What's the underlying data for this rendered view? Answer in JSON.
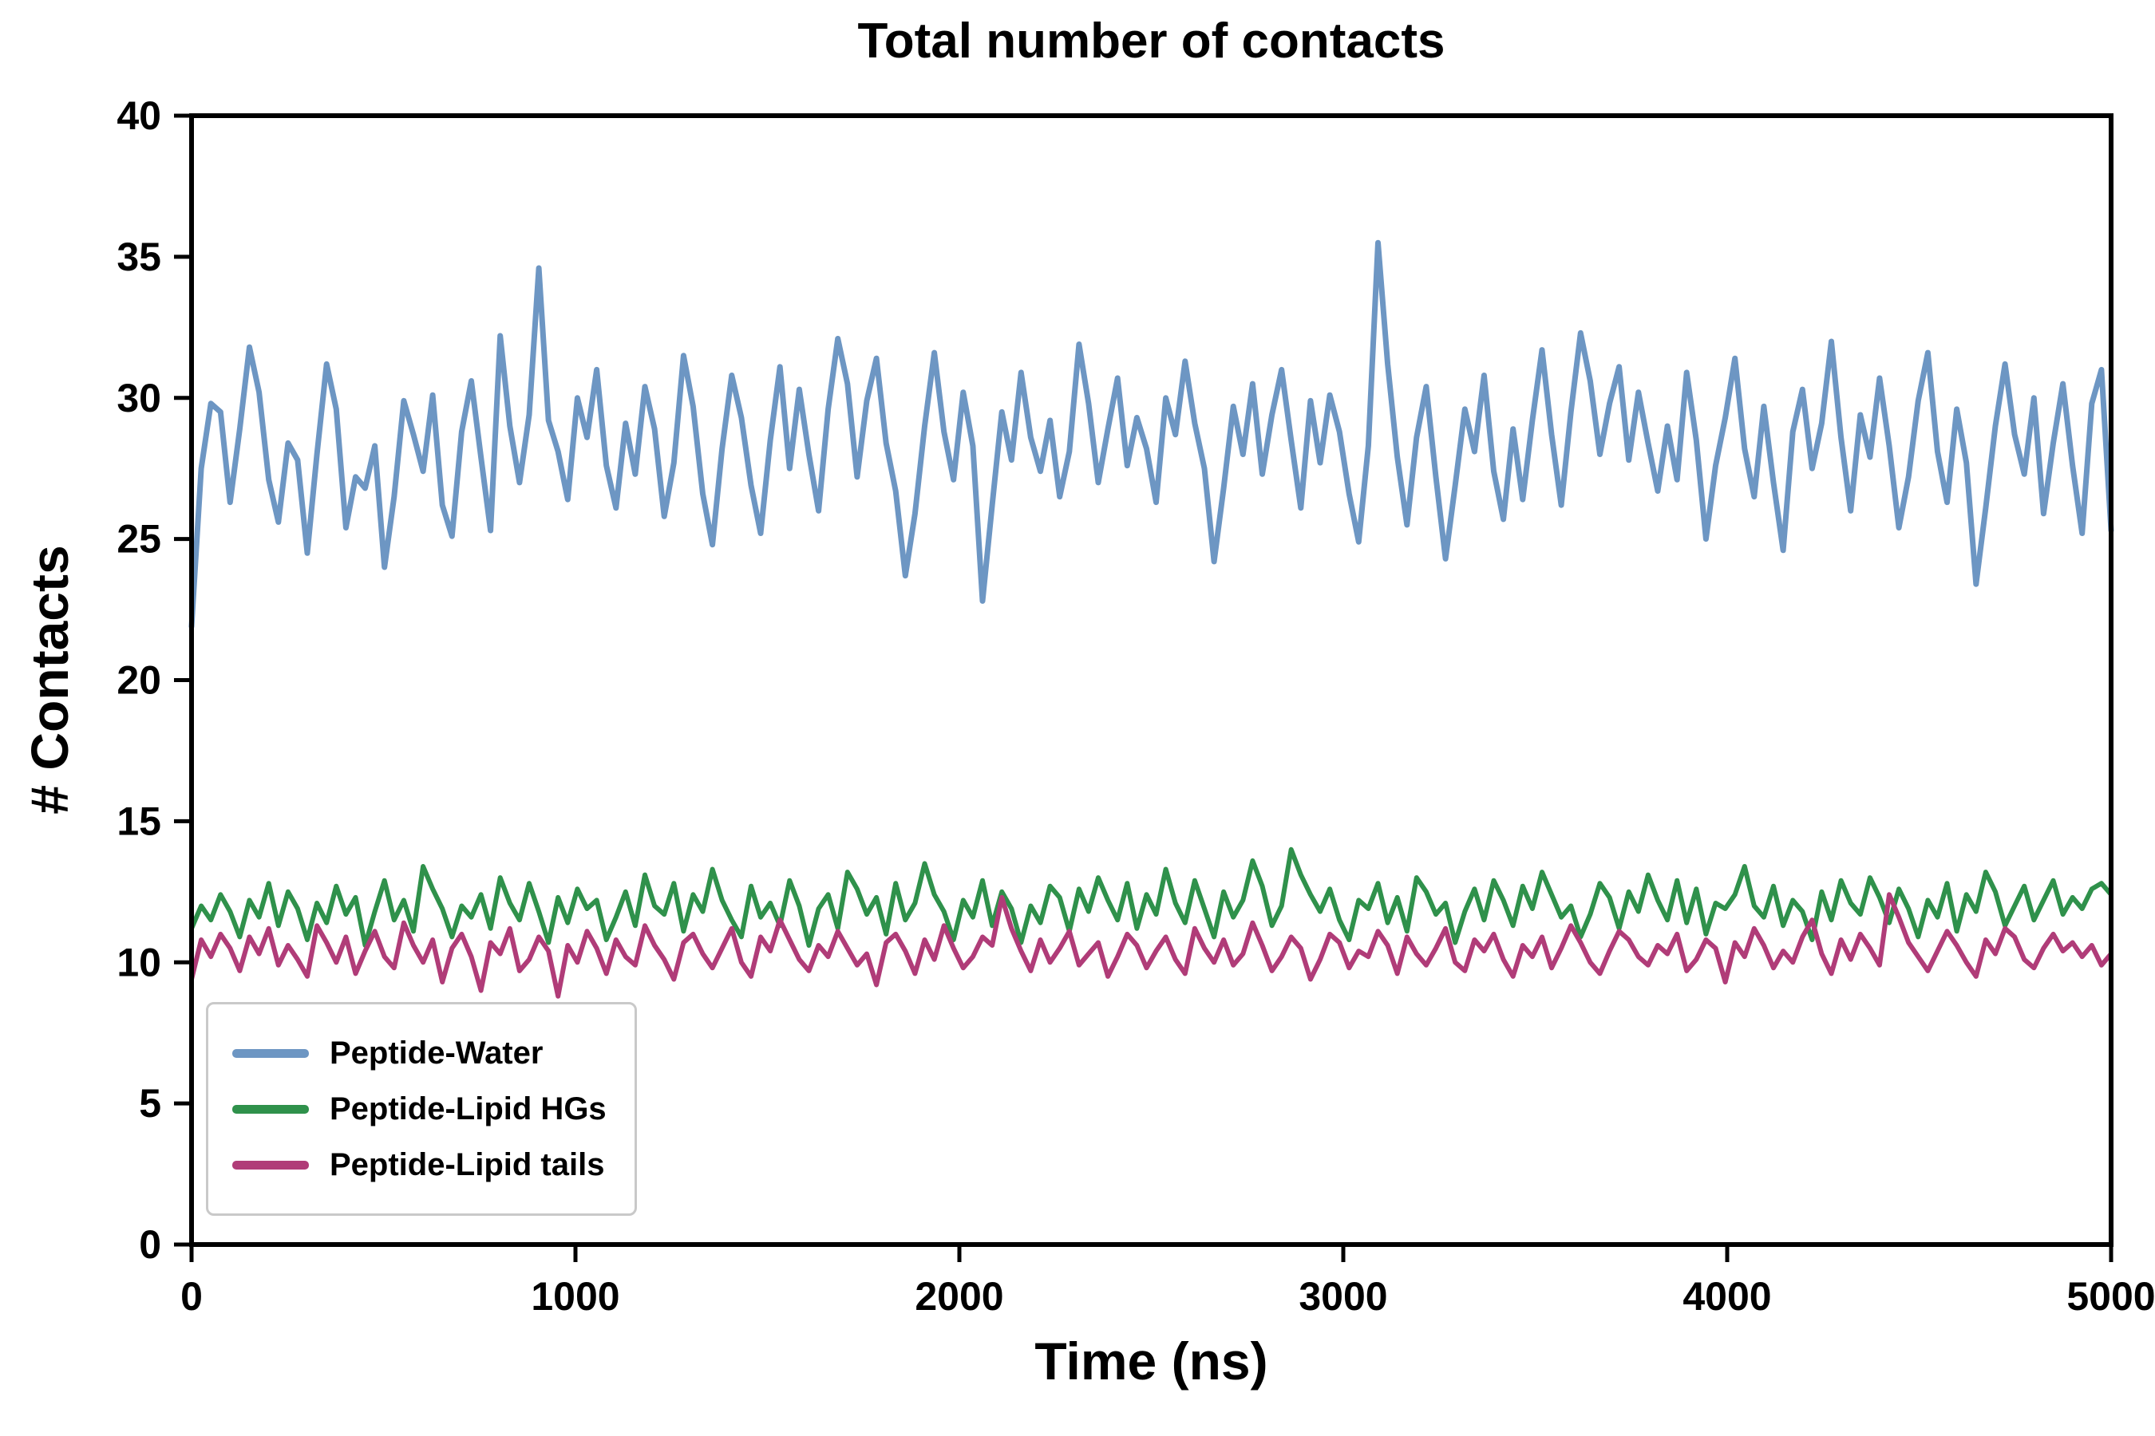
{
  "page": {
    "background": "#ffffff"
  },
  "chart_data": {
    "type": "line",
    "title": "Total number of contacts",
    "xlabel": "Time (ns)",
    "ylabel": "# Contacts",
    "xlim": [
      0,
      5000
    ],
    "ylim": [
      0,
      40
    ],
    "x_ticks": [
      0,
      1000,
      2000,
      3000,
      4000,
      5000
    ],
    "y_ticks": [
      0,
      5,
      10,
      15,
      20,
      25,
      30,
      35,
      40
    ],
    "grid": false,
    "legend_position": "lower-left",
    "axis_color": "#000000",
    "series": [
      {
        "name": "Peptide-Water",
        "color": "#6d96c3",
        "line_width": 7,
        "mean": 28.2,
        "values": [
          21.9,
          27.5,
          29.8,
          29.5,
          26.3,
          28.9,
          31.8,
          30.2,
          27.1,
          25.6,
          28.4,
          27.8,
          24.5,
          28.0,
          31.2,
          29.6,
          25.4,
          27.2,
          26.8,
          28.3,
          24.0,
          26.5,
          29.9,
          28.7,
          27.4,
          30.1,
          26.2,
          25.1,
          28.8,
          30.6,
          27.9,
          25.3,
          32.2,
          29.0,
          27.0,
          29.4,
          34.6,
          29.2,
          28.1,
          26.4,
          30.0,
          28.6,
          31.0,
          27.6,
          26.1,
          29.1,
          27.3,
          30.4,
          28.9,
          25.8,
          27.7,
          31.5,
          29.7,
          26.6,
          24.8,
          28.2,
          30.8,
          29.3,
          26.9,
          25.2,
          28.5,
          31.1,
          27.5,
          30.3,
          28.0,
          26.0,
          29.6,
          32.1,
          30.5,
          27.2,
          29.9,
          31.4,
          28.4,
          26.7,
          23.7,
          25.9,
          29.0,
          31.6,
          28.8,
          27.1,
          30.2,
          28.3,
          22.8,
          26.2,
          29.5,
          27.8,
          30.9,
          28.6,
          27.4,
          29.2,
          26.5,
          28.1,
          31.9,
          29.8,
          27.0,
          28.9,
          30.7,
          27.6,
          29.3,
          28.2,
          26.3,
          30.0,
          28.7,
          31.3,
          29.1,
          27.5,
          24.2,
          26.8,
          29.7,
          28.0,
          30.5,
          27.3,
          29.4,
          31.0,
          28.5,
          26.1,
          29.9,
          27.7,
          30.1,
          28.8,
          26.6,
          24.9,
          28.3,
          35.5,
          31.2,
          27.9,
          25.5,
          28.6,
          30.4,
          27.2,
          24.3,
          26.9,
          29.6,
          28.1,
          30.8,
          27.4,
          25.7,
          28.9,
          26.4,
          29.2,
          31.7,
          28.7,
          26.2,
          29.5,
          32.3,
          30.6,
          28.0,
          29.8,
          31.1,
          27.8,
          30.2,
          28.4,
          26.7,
          29.0,
          27.1,
          30.9,
          28.5,
          25.0,
          27.6,
          29.3,
          31.4,
          28.2,
          26.5,
          29.7,
          27.0,
          24.6,
          28.8,
          30.3,
          27.5,
          29.1,
          32.0,
          28.6,
          26.0,
          29.4,
          27.9,
          30.7,
          28.3,
          25.4,
          27.2,
          29.9,
          31.6,
          28.1,
          26.3,
          29.6,
          27.7,
          23.4,
          26.1,
          29.0,
          31.2,
          28.7,
          27.3,
          30.0,
          25.9,
          28.4,
          30.5,
          27.6,
          25.2,
          29.8,
          31.0,
          25.3
        ]
      },
      {
        "name": "Peptide-Lipid HGs",
        "color": "#2f914b",
        "line_width": 6,
        "mean": 11.9,
        "values": [
          11.2,
          12.0,
          11.5,
          12.4,
          11.8,
          10.9,
          12.2,
          11.6,
          12.8,
          11.3,
          12.5,
          11.9,
          10.8,
          12.1,
          11.4,
          12.7,
          11.7,
          12.3,
          10.6,
          11.8,
          12.9,
          11.5,
          12.2,
          11.1,
          13.4,
          12.6,
          11.9,
          10.9,
          12.0,
          11.6,
          12.4,
          11.2,
          13.0,
          12.1,
          11.5,
          12.8,
          11.8,
          10.7,
          12.3,
          11.4,
          12.6,
          11.9,
          12.2,
          10.8,
          11.6,
          12.5,
          11.3,
          13.1,
          12.0,
          11.7,
          12.8,
          11.1,
          12.4,
          11.8,
          13.3,
          12.2,
          11.5,
          10.9,
          12.7,
          11.6,
          12.1,
          11.3,
          12.9,
          12.0,
          10.6,
          11.9,
          12.4,
          11.2,
          13.2,
          12.6,
          11.7,
          12.3,
          11.0,
          12.8,
          11.5,
          12.1,
          13.5,
          12.4,
          11.8,
          10.8,
          12.2,
          11.6,
          12.9,
          11.3,
          12.5,
          11.9,
          10.7,
          12.0,
          11.4,
          12.7,
          12.3,
          11.1,
          12.6,
          11.8,
          13.0,
          12.2,
          11.5,
          12.8,
          11.2,
          12.4,
          11.7,
          13.3,
          12.1,
          11.4,
          12.9,
          11.9,
          10.9,
          12.5,
          11.6,
          12.2,
          13.6,
          12.7,
          11.3,
          12.0,
          14.0,
          13.1,
          12.4,
          11.8,
          12.6,
          11.5,
          10.8,
          12.2,
          11.9,
          12.8,
          11.4,
          12.3,
          11.1,
          13.0,
          12.5,
          11.7,
          12.1,
          10.7,
          11.8,
          12.6,
          11.5,
          12.9,
          12.2,
          11.3,
          12.7,
          11.9,
          13.2,
          12.4,
          11.6,
          12.0,
          10.9,
          11.7,
          12.8,
          12.3,
          11.2,
          12.5,
          11.8,
          13.1,
          12.2,
          11.5,
          12.9,
          11.4,
          12.6,
          11.0,
          12.1,
          11.9,
          12.4,
          13.4,
          12.0,
          11.6,
          12.7,
          11.3,
          12.2,
          11.8,
          10.8,
          12.5,
          11.5,
          12.9,
          12.1,
          11.7,
          13.0,
          12.3,
          11.4,
          12.6,
          11.9,
          10.9,
          12.2,
          11.6,
          12.8,
          11.1,
          12.4,
          11.8,
          13.2,
          12.5,
          11.3,
          12.0,
          12.7,
          11.5,
          12.2,
          12.9,
          11.7,
          12.3,
          11.9,
          12.6,
          12.8,
          12.4
        ]
      },
      {
        "name": "Peptide-Lipid tails",
        "color": "#b03c78",
        "line_width": 6,
        "mean": 10.4,
        "values": [
          9.4,
          10.8,
          10.2,
          11.0,
          10.5,
          9.7,
          10.9,
          10.3,
          11.2,
          9.9,
          10.6,
          10.1,
          9.5,
          11.3,
          10.7,
          10.0,
          10.9,
          9.6,
          10.4,
          11.1,
          10.2,
          9.8,
          11.4,
          10.6,
          10.0,
          10.8,
          9.3,
          10.5,
          11.0,
          10.2,
          9.0,
          10.7,
          10.3,
          11.2,
          9.7,
          10.1,
          10.9,
          10.4,
          8.8,
          10.6,
          10.0,
          11.1,
          10.5,
          9.6,
          10.8,
          10.2,
          9.9,
          11.3,
          10.6,
          10.1,
          9.4,
          10.7,
          11.0,
          10.3,
          9.8,
          10.5,
          11.2,
          10.0,
          9.5,
          10.9,
          10.4,
          11.5,
          10.8,
          10.1,
          9.7,
          10.6,
          10.2,
          11.1,
          10.5,
          9.9,
          10.3,
          9.2,
          10.7,
          11.0,
          10.4,
          9.6,
          10.8,
          10.1,
          11.3,
          10.5,
          9.8,
          10.2,
          10.9,
          10.6,
          12.3,
          11.2,
          10.4,
          9.7,
          10.8,
          10.0,
          10.5,
          11.1,
          9.9,
          10.3,
          10.7,
          9.5,
          10.2,
          11.0,
          10.6,
          9.8,
          10.4,
          10.9,
          10.1,
          9.6,
          11.2,
          10.5,
          10.0,
          10.8,
          9.9,
          10.3,
          11.4,
          10.6,
          9.7,
          10.2,
          10.9,
          10.5,
          9.4,
          10.1,
          11.0,
          10.7,
          9.8,
          10.4,
          10.2,
          11.1,
          10.6,
          9.6,
          10.9,
          10.3,
          9.9,
          10.5,
          11.2,
          10.0,
          9.7,
          10.8,
          10.4,
          11.0,
          10.1,
          9.5,
          10.6,
          10.2,
          10.9,
          9.8,
          10.5,
          11.3,
          10.7,
          10.0,
          9.6,
          10.4,
          11.1,
          10.8,
          10.2,
          9.9,
          10.6,
          10.3,
          11.0,
          9.7,
          10.1,
          10.8,
          10.5,
          9.3,
          10.7,
          10.2,
          11.2,
          10.6,
          9.8,
          10.4,
          10.0,
          10.9,
          11.5,
          10.3,
          9.6,
          10.8,
          10.1,
          11.0,
          10.5,
          9.9,
          12.4,
          11.6,
          10.7,
          10.2,
          9.7,
          10.4,
          11.1,
          10.6,
          10.0,
          9.5,
          10.8,
          10.3,
          11.2,
          10.9,
          10.1,
          9.8,
          10.5,
          11.0,
          10.4,
          10.7,
          10.2,
          10.6,
          9.9,
          10.3
        ]
      }
    ]
  }
}
